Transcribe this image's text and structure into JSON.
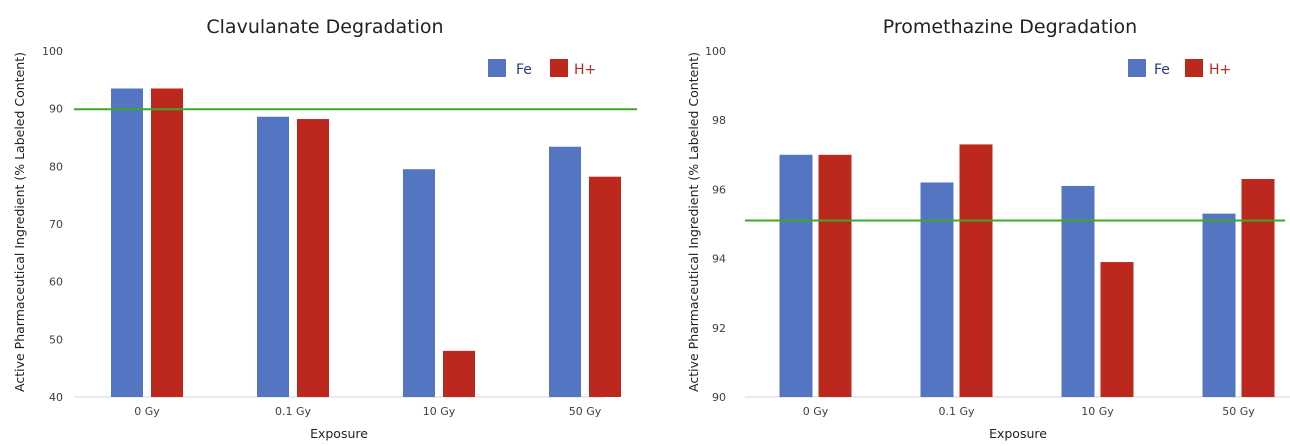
{
  "chart_data": [
    {
      "type": "bar",
      "title": "Clavulanate Degradation",
      "xlabel": "Exposure",
      "ylabel": "Active Pharmaceutical Ingredient (% Labeled Content)",
      "categories": [
        "0 Gy",
        "0.1 Gy",
        "10 Gy",
        "50 Gy"
      ],
      "series": [
        {
          "name": "Fe",
          "color": "#5475c2",
          "values": [
            93.5,
            88.6,
            79.5,
            83.4
          ]
        },
        {
          "name": "H+",
          "color": "#bc281d",
          "values": [
            93.5,
            88.2,
            48.0,
            78.2
          ]
        }
      ],
      "ylim": [
        40,
        100
      ],
      "yticks": [
        "40",
        "50",
        "60",
        "70",
        "80",
        "90",
        "100"
      ],
      "ytick_values": [
        40,
        50,
        60,
        70,
        80,
        90,
        100
      ],
      "reference_line": {
        "value": 89.9,
        "color": "#3aaa26"
      },
      "legend": "top-right",
      "grid": false
    },
    {
      "type": "bar",
      "title": "Promethazine Degradation",
      "xlabel": "Exposure",
      "ylabel": "Active Pharmaceutical Ingredient (% Labeled Content)",
      "categories": [
        "0 Gy",
        "0.1 Gy",
        "10 Gy",
        "50 Gy"
      ],
      "series": [
        {
          "name": "Fe",
          "color": "#5475c2",
          "values": [
            97.0,
            96.2,
            96.1,
            95.3
          ]
        },
        {
          "name": "H+",
          "color": "#bc281d",
          "values": [
            97.0,
            97.3,
            93.9,
            96.3
          ]
        }
      ],
      "ylim": [
        90,
        100
      ],
      "yticks": [
        "90",
        "92",
        "94",
        "96",
        "98",
        "100"
      ],
      "ytick_values": [
        90,
        92,
        94,
        96,
        98,
        100
      ],
      "reference_line": {
        "value": 95.1,
        "color": "#3aaa26"
      },
      "legend": "top-right",
      "grid": false
    }
  ]
}
